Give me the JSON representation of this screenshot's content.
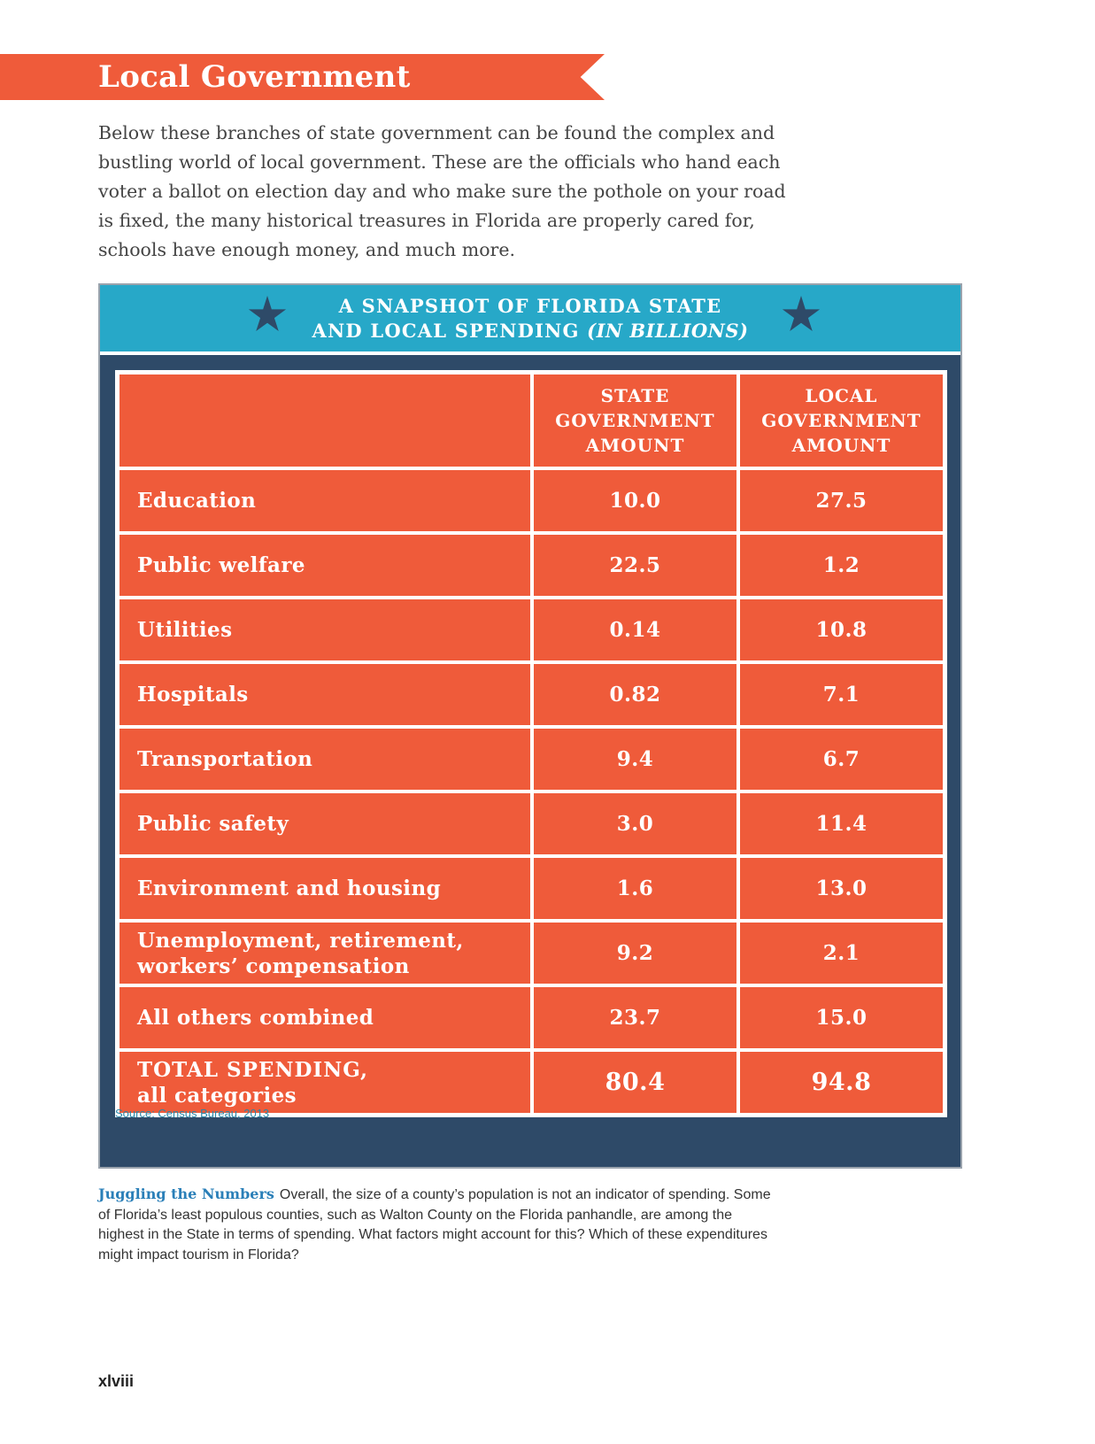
{
  "banner": {
    "title": "Local Government"
  },
  "intro": "Below these branches of state government can be found the complex and bustling world of local government. These are the officials who hand each voter a ballot on election day and who make sure the pothole on your road is fixed, the many historical treasures in Florida are properly cared for, schools have enough money, and much more.",
  "infobox": {
    "title_line1": "A SNAPSHOT OF FLORIDA STATE",
    "title_line2": "AND LOCAL SPENDING",
    "title_sub": "(IN BILLIONS)",
    "icons": [
      "star-icon",
      "star-icon"
    ],
    "source": "Source: Census Bureau, 2013"
  },
  "table": {
    "headers": [
      "STATE GOVERNMENT AMOUNT",
      "LOCAL GOVERNMENT AMOUNT"
    ],
    "rows": [
      {
        "category": "Education",
        "state": "10.0",
        "local": "27.5"
      },
      {
        "category": "Public welfare",
        "state": "22.5",
        "local": "1.2"
      },
      {
        "category": "Utilities",
        "state": "0.14",
        "local": "10.8"
      },
      {
        "category": "Hospitals",
        "state": "0.82",
        "local": "7.1"
      },
      {
        "category": "Transportation",
        "state": "9.4",
        "local": "6.7"
      },
      {
        "category": "Public safety",
        "state": "3.0",
        "local": "11.4"
      },
      {
        "category": "Environment and housing",
        "state": "1.6",
        "local": "13.0"
      },
      {
        "category": "Unemployment, retirement, workers’ compensation",
        "state": "9.2",
        "local": "2.1"
      },
      {
        "category": "All others combined",
        "state": "23.7",
        "local": "15.0"
      }
    ],
    "total": {
      "label_line1": "TOTAL SPENDING,",
      "label_line2": "all categories",
      "state": "80.4",
      "local": "94.8"
    }
  },
  "caption": {
    "lead": "Juggling the Numbers",
    "text": "Overall, the size of a county’s population is not an indicator of spending. Some of Florida’s least populous counties, such as Walton County on the Florida panhandle, are among the highest in the State in terms of spending. What factors might account for this? Which of these expenditures might impact tourism in Florida?"
  },
  "folio": "xlviii",
  "colors": {
    "accent": "#ef5b3a",
    "header_blue": "#27a8c8",
    "navy": "#2e4a68"
  }
}
